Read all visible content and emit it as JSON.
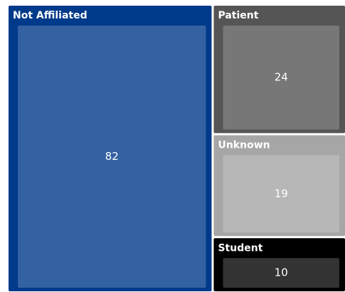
{
  "chart_data": {
    "type": "treemap",
    "categories": [
      "Not Affiliated",
      "Patient",
      "Unknown",
      "Student"
    ],
    "values": [
      82,
      24,
      19,
      10
    ],
    "colors": [
      "#003a8a",
      "#555555",
      "#a6a6a6",
      "#000000"
    ]
  }
}
